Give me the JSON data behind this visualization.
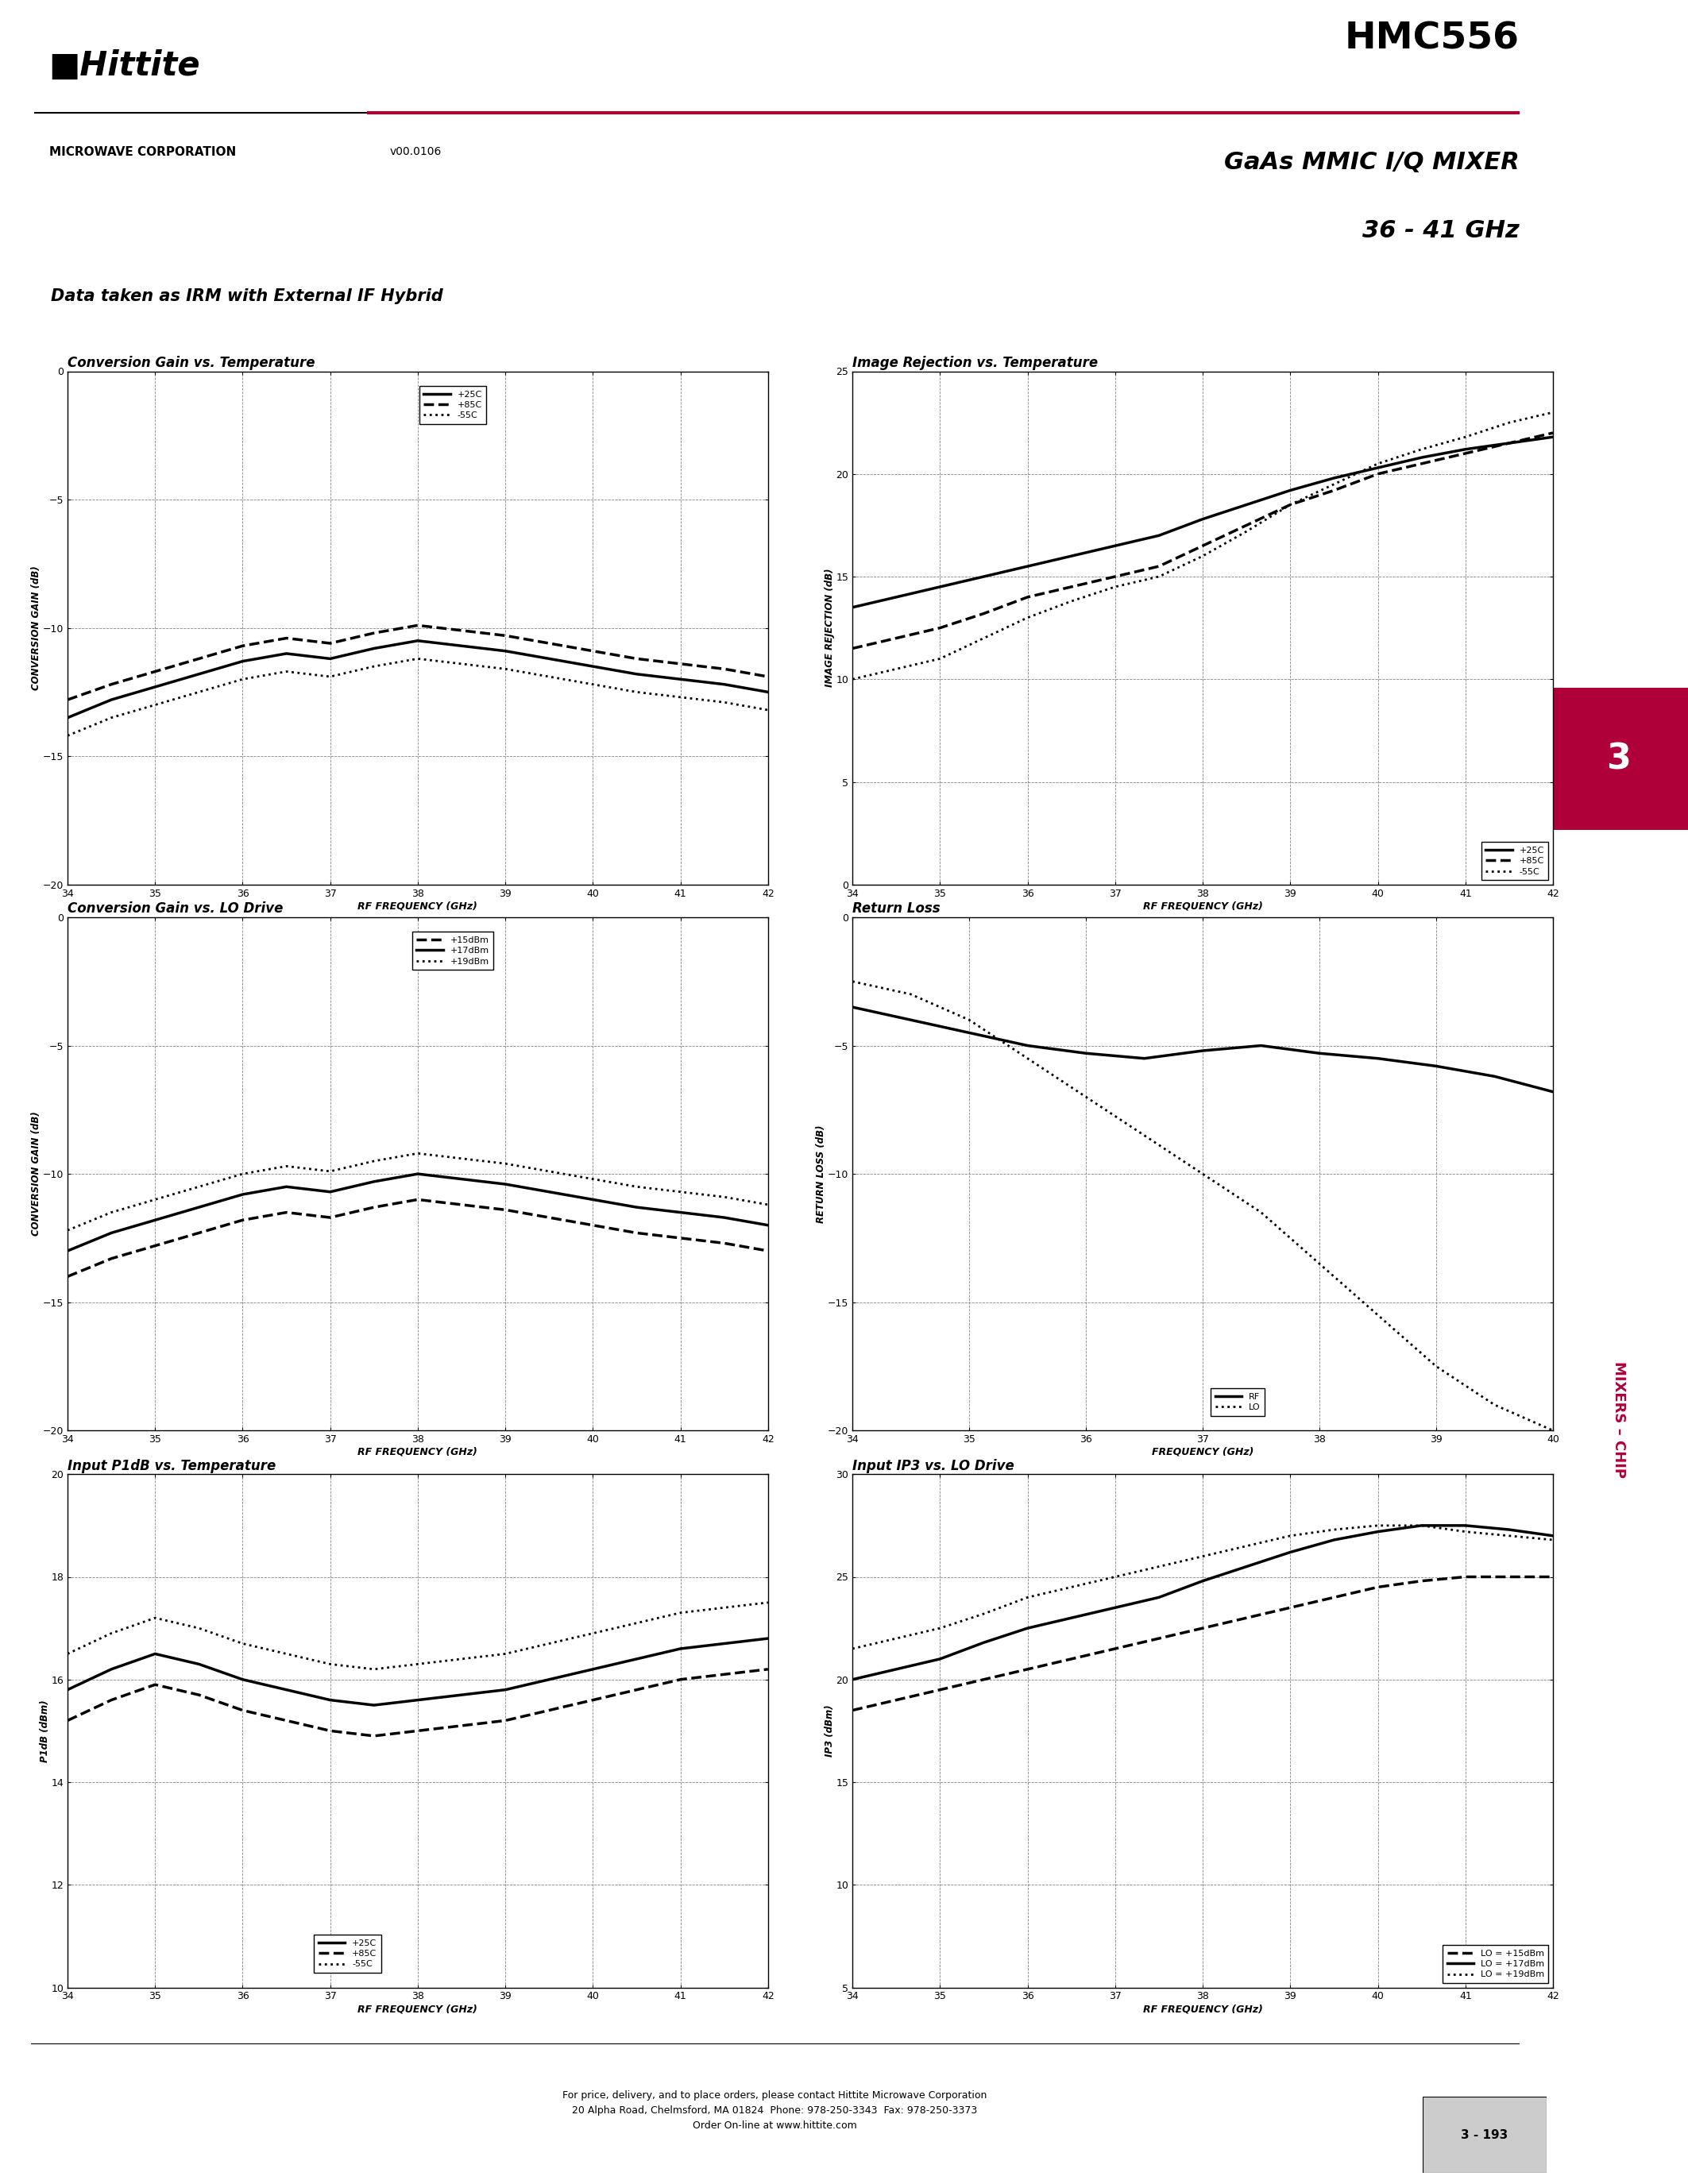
{
  "title": "HMC556",
  "subtitle_line1": "GaAs MMIC I/Q MIXER",
  "subtitle_line2": "36 - 41 GHz",
  "version": "v00.0106",
  "data_note": "Data taken as IRM with External IF Hybrid",
  "background_color": "#ffffff",
  "sidebar_color": "#c0c0c0",
  "sidebar_number_color": "#b0003a",
  "sidebar_band_color": "#b0003a",
  "sidebar_text_color": "#b0003a",
  "red_line_color": "#aa0033",
  "footer_text_line1": "For price, delivery, and to place orders, please contact Hittite Microwave Corporation",
  "footer_text_line2": "20 Alpha Road, Chelmsford, MA 01824  Phone: 978-250-3343  Fax: 978-250-3373",
  "footer_text_line3": "Order On-line at www.hittite.com",
  "page_num": "3 - 193",
  "chart1": {
    "title": "Conversion Gain vs. Temperature",
    "xlabel": "RF FREQUENCY (GHz)",
    "ylabel": "CONVERSION GAIN (dB)",
    "xlim": [
      34,
      42
    ],
    "ylim": [
      -20,
      0
    ],
    "xticks": [
      34,
      35,
      36,
      37,
      38,
      39,
      40,
      41,
      42
    ],
    "yticks": [
      0,
      -5,
      -10,
      -15,
      -20
    ],
    "legend": [
      "+25C",
      "+85C",
      "-55C"
    ],
    "legend_styles": [
      "solid",
      "dashed",
      "dotted"
    ],
    "legend_lw": [
      2.5,
      2.5,
      2.0
    ],
    "legend_loc": "upper center",
    "x": [
      34,
      34.5,
      35,
      35.5,
      36,
      36.5,
      37,
      37.5,
      38,
      38.5,
      39,
      39.5,
      40,
      40.5,
      41,
      41.5,
      42
    ],
    "y_25c": [
      -13.5,
      -12.8,
      -12.3,
      -11.8,
      -11.3,
      -11.0,
      -11.2,
      -10.8,
      -10.5,
      -10.7,
      -10.9,
      -11.2,
      -11.5,
      -11.8,
      -12.0,
      -12.2,
      -12.5
    ],
    "y_85c": [
      -12.8,
      -12.2,
      -11.7,
      -11.2,
      -10.7,
      -10.4,
      -10.6,
      -10.2,
      -9.9,
      -10.1,
      -10.3,
      -10.6,
      -10.9,
      -11.2,
      -11.4,
      -11.6,
      -11.9
    ],
    "y_55c": [
      -14.2,
      -13.5,
      -13.0,
      -12.5,
      -12.0,
      -11.7,
      -11.9,
      -11.5,
      -11.2,
      -11.4,
      -11.6,
      -11.9,
      -12.2,
      -12.5,
      -12.7,
      -12.9,
      -13.2
    ]
  },
  "chart2": {
    "title": "Image Rejection vs. Temperature",
    "xlabel": "RF FREQUENCY (GHz)",
    "ylabel": "IMAGE REJECTION (dB)",
    "xlim": [
      34,
      42
    ],
    "ylim": [
      0,
      25
    ],
    "xticks": [
      34,
      35,
      36,
      37,
      38,
      39,
      40,
      41,
      42
    ],
    "yticks": [
      0,
      5,
      10,
      15,
      20,
      25
    ],
    "legend": [
      "+25C",
      "+85C",
      "-55C"
    ],
    "legend_styles": [
      "solid",
      "dashed",
      "dotted"
    ],
    "legend_lw": [
      2.5,
      2.5,
      2.0
    ],
    "legend_loc": "lower right",
    "x": [
      34,
      34.5,
      35,
      35.5,
      36,
      36.5,
      37,
      37.5,
      38,
      38.5,
      39,
      39.5,
      40,
      40.5,
      41,
      41.5,
      42
    ],
    "y_25c": [
      13.5,
      14.0,
      14.5,
      15.0,
      15.5,
      16.0,
      16.5,
      17.0,
      17.8,
      18.5,
      19.2,
      19.8,
      20.3,
      20.8,
      21.2,
      21.5,
      21.8
    ],
    "y_85c": [
      11.5,
      12.0,
      12.5,
      13.2,
      14.0,
      14.5,
      15.0,
      15.5,
      16.5,
      17.5,
      18.5,
      19.2,
      20.0,
      20.5,
      21.0,
      21.5,
      22.0
    ],
    "y_55c": [
      10.0,
      10.5,
      11.0,
      12.0,
      13.0,
      13.8,
      14.5,
      15.0,
      16.0,
      17.2,
      18.5,
      19.5,
      20.5,
      21.2,
      21.8,
      22.5,
      23.0
    ]
  },
  "chart3": {
    "title": "Conversion Gain vs. LO Drive",
    "xlabel": "RF FREQUENCY (GHz)",
    "ylabel": "CONVERSION GAIN (dB)",
    "xlim": [
      34,
      42
    ],
    "ylim": [
      -20,
      0
    ],
    "xticks": [
      34,
      35,
      36,
      37,
      38,
      39,
      40,
      41,
      42
    ],
    "yticks": [
      0,
      -5,
      -10,
      -15,
      -20
    ],
    "legend": [
      "+15dBm",
      "+17dBm",
      "+19dBm"
    ],
    "legend_styles": [
      "dashed",
      "solid",
      "dotted"
    ],
    "legend_lw": [
      2.5,
      2.5,
      2.0
    ],
    "legend_loc": "upper center",
    "x": [
      34,
      34.5,
      35,
      35.5,
      36,
      36.5,
      37,
      37.5,
      38,
      38.5,
      39,
      39.5,
      40,
      40.5,
      41,
      41.5,
      42
    ],
    "y_15dBm": [
      -14.0,
      -13.3,
      -12.8,
      -12.3,
      -11.8,
      -11.5,
      -11.7,
      -11.3,
      -11.0,
      -11.2,
      -11.4,
      -11.7,
      -12.0,
      -12.3,
      -12.5,
      -12.7,
      -13.0
    ],
    "y_17dBm": [
      -13.0,
      -12.3,
      -11.8,
      -11.3,
      -10.8,
      -10.5,
      -10.7,
      -10.3,
      -10.0,
      -10.2,
      -10.4,
      -10.7,
      -11.0,
      -11.3,
      -11.5,
      -11.7,
      -12.0
    ],
    "y_19dBm": [
      -12.2,
      -11.5,
      -11.0,
      -10.5,
      -10.0,
      -9.7,
      -9.9,
      -9.5,
      -9.2,
      -9.4,
      -9.6,
      -9.9,
      -10.2,
      -10.5,
      -10.7,
      -10.9,
      -11.2
    ]
  },
  "chart4": {
    "title": "Return Loss",
    "xlabel": "FREQUENCY (GHz)",
    "ylabel": "RETURN LOSS (dB)",
    "xlim": [
      34,
      40
    ],
    "ylim": [
      -20,
      0
    ],
    "xticks": [
      34,
      35,
      36,
      37,
      38,
      39,
      40
    ],
    "yticks": [
      0,
      -5,
      -10,
      -15,
      -20
    ],
    "legend": [
      "RF",
      "LO"
    ],
    "legend_styles": [
      "solid",
      "dotted"
    ],
    "legend_lw": [
      2.5,
      2.0
    ],
    "legend_loc": "lower center",
    "x": [
      34,
      34.5,
      35,
      35.5,
      36,
      36.5,
      37,
      37.5,
      38,
      38.5,
      39,
      39.5,
      40
    ],
    "y_rf": [
      -3.5,
      -4.0,
      -4.5,
      -5.0,
      -5.3,
      -5.5,
      -5.2,
      -5.0,
      -5.3,
      -5.5,
      -5.8,
      -6.2,
      -6.8
    ],
    "y_lo": [
      -2.5,
      -3.0,
      -4.0,
      -5.5,
      -7.0,
      -8.5,
      -10.0,
      -11.5,
      -13.5,
      -15.5,
      -17.5,
      -19.0,
      -20.0
    ]
  },
  "chart5": {
    "title": "Input P1dB vs. Temperature",
    "xlabel": "RF FREQUENCY (GHz)",
    "ylabel": "P1dB (dBm)",
    "xlim": [
      34,
      42
    ],
    "ylim": [
      10,
      20
    ],
    "xticks": [
      34,
      35,
      36,
      37,
      38,
      39,
      40,
      41,
      42
    ],
    "yticks": [
      10,
      12,
      14,
      16,
      18,
      20
    ],
    "legend": [
      "+25C",
      "+85C",
      "-55C"
    ],
    "legend_styles": [
      "solid",
      "dashed",
      "dotted"
    ],
    "legend_lw": [
      2.5,
      2.5,
      2.0
    ],
    "legend_loc": "lower right",
    "x": [
      34,
      34.5,
      35,
      35.5,
      36,
      36.5,
      37,
      37.5,
      38,
      38.5,
      39,
      39.5,
      40,
      40.5,
      41,
      41.5,
      42
    ],
    "y_25c": [
      15.8,
      16.2,
      16.5,
      16.3,
      16.0,
      15.8,
      15.6,
      15.5,
      15.6,
      15.7,
      15.8,
      16.0,
      16.2,
      16.4,
      16.6,
      16.7,
      16.8
    ],
    "y_85c": [
      15.2,
      15.6,
      15.9,
      15.7,
      15.4,
      15.2,
      15.0,
      14.9,
      15.0,
      15.1,
      15.2,
      15.4,
      15.6,
      15.8,
      16.0,
      16.1,
      16.2
    ],
    "y_55c": [
      16.5,
      16.9,
      17.2,
      17.0,
      16.7,
      16.5,
      16.3,
      16.2,
      16.3,
      16.4,
      16.5,
      16.7,
      16.9,
      17.1,
      17.3,
      17.4,
      17.5
    ]
  },
  "chart6": {
    "title": "Input IP3 vs. LO Drive",
    "xlabel": "RF FREQUENCY (GHz)",
    "ylabel": "IP3 (dBm)",
    "xlim": [
      34,
      42
    ],
    "ylim": [
      5,
      30
    ],
    "xticks": [
      34,
      35,
      36,
      37,
      38,
      39,
      40,
      41,
      42
    ],
    "yticks": [
      5,
      10,
      15,
      20,
      25,
      30
    ],
    "legend": [
      "LO = +15dBm",
      "LO = +17dBm",
      "LO = +19dBm"
    ],
    "legend_styles": [
      "dashed",
      "solid",
      "dotted"
    ],
    "legend_lw": [
      2.5,
      2.5,
      2.0
    ],
    "legend_loc": "lower right",
    "x": [
      34,
      34.5,
      35,
      35.5,
      36,
      36.5,
      37,
      37.5,
      38,
      38.5,
      39,
      39.5,
      40,
      40.5,
      41,
      41.5,
      42
    ],
    "y_15dBm": [
      18.5,
      19.0,
      19.5,
      20.0,
      20.5,
      21.0,
      21.5,
      22.0,
      22.5,
      23.0,
      23.5,
      24.0,
      24.5,
      24.8,
      25.0,
      25.0,
      25.0
    ],
    "y_17dBm": [
      20.0,
      20.5,
      21.0,
      21.8,
      22.5,
      23.0,
      23.5,
      24.0,
      24.8,
      25.5,
      26.2,
      26.8,
      27.2,
      27.5,
      27.5,
      27.3,
      27.0
    ],
    "y_19dBm": [
      21.5,
      22.0,
      22.5,
      23.2,
      24.0,
      24.5,
      25.0,
      25.5,
      26.0,
      26.5,
      27.0,
      27.3,
      27.5,
      27.5,
      27.2,
      27.0,
      26.8
    ]
  }
}
